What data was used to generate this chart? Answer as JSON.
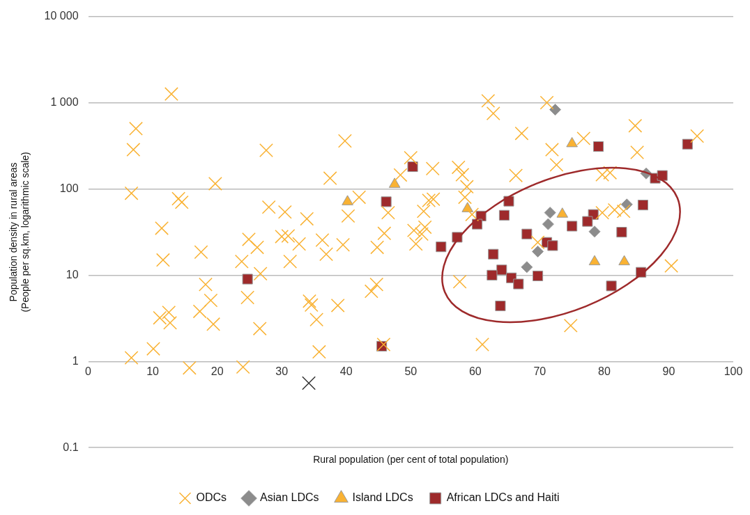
{
  "chart_data": {
    "type": "scatter",
    "xlabel": "Rural population (per cent of total population)",
    "ylabel": "Population density in rural areas\n(People per sq.km, logarithmic scale)",
    "log": "y",
    "grid": "y",
    "legend": "bottom",
    "xlim": [
      0,
      100
    ],
    "xticks": [
      0,
      10,
      20,
      30,
      40,
      50,
      60,
      70,
      80,
      90,
      100
    ],
    "ylim": [
      0.1,
      10000
    ],
    "yticks": [
      0.1,
      1,
      10,
      100,
      {
        "value": 1000,
        "label": "1 000"
      },
      {
        "value": 10000,
        "label": "10 000"
      }
    ],
    "series": [
      {
        "name": "ODCs",
        "color": "#f9b233",
        "marker": "cross",
        "x": [
          12.9,
          7.4,
          7.0,
          6.7,
          14,
          14.5,
          19.7,
          11.4,
          11.6,
          17.5,
          18.2,
          19,
          19.4,
          17.3,
          12.5,
          12.7,
          11.1,
          10.1,
          6.7,
          15.7,
          24,
          24.7,
          24.9,
          23.8,
          26.2,
          26.6,
          26.7,
          27.6,
          28,
          30.5,
          30,
          31,
          31.3,
          32.7,
          33.9,
          34.3,
          34.6,
          35.4,
          35.8,
          36.3,
          36.9,
          37.5,
          38.7,
          39.5,
          39.8,
          40.3,
          42,
          43.9,
          44.7,
          44.8,
          45.9,
          46.5,
          45.8,
          48.4,
          50,
          50.5,
          50.8,
          51.7,
          52.2,
          53.4,
          52.8,
          53.5,
          52,
          57.4,
          58,
          58.7,
          58.4,
          57.6,
          59.5,
          61.1,
          62,
          62.8,
          67.2,
          71.1,
          76.8,
          84.8,
          94.4,
          71.9,
          72.6,
          85.1,
          66.3,
          79.7,
          80.9,
          79.7,
          81.6,
          83,
          69.7,
          90.4,
          74.8
        ],
        "values": [
          1260,
          500,
          285,
          89,
          77,
          70,
          115,
          35,
          15,
          18.5,
          7.8,
          5.1,
          2.7,
          3.8,
          3.7,
          2.8,
          3.2,
          1.4,
          1.1,
          0.84,
          0.86,
          5.5,
          26,
          14.4,
          21,
          2.4,
          10.4,
          280,
          61.5,
          54,
          28,
          28.5,
          14.4,
          23,
          45,
          5.0,
          4.5,
          3.05,
          1.29,
          25.5,
          17.5,
          133,
          4.45,
          22.5,
          360,
          48.5,
          80,
          6.5,
          7.8,
          21,
          30.5,
          53,
          1.57,
          145,
          230,
          33,
          23,
          30,
          36,
          172,
          73.5,
          76,
          55,
          178,
          146,
          106,
          80,
          8.4,
          50.5,
          1.57,
          1050,
          750,
          440,
          1000,
          385,
          540,
          410,
          285,
          190,
          265,
          143,
          146,
          154,
          53,
          57,
          55,
          24,
          12.8,
          2.6
        ]
      },
      {
        "color": "#333333",
        "marker": "cross",
        "x": [
          34.2
        ],
        "values": [
          0.56
        ]
      },
      {
        "name": "Asian LDCs",
        "color": "#8c8c8c",
        "marker": "diamond",
        "x": [
          72.4,
          86.5,
          83.5,
          71.6,
          71.3,
          78.5,
          69.7,
          68
        ],
        "values": [
          830,
          151,
          66,
          53,
          39,
          32,
          18.8,
          12.4
        ]
      },
      {
        "name": "Island LDCs",
        "color": "#f9b233",
        "marker": "triangle",
        "x": [
          40.2,
          47.5,
          58.8,
          75,
          73.5,
          78.5,
          83.1
        ],
        "values": [
          71,
          113,
          59,
          335,
          51,
          14.3,
          14.3
        ]
      },
      {
        "name": "African LDCs and Haiti",
        "color": "#9e2a2b",
        "marker": "square",
        "x": [
          24.7,
          46.2,
          50.3,
          45.5,
          54.7,
          57.2,
          79.1,
          92.9,
          87.9,
          89,
          86,
          65.2,
          64.5,
          60.9,
          60.3,
          78.3,
          77.4,
          75,
          82.7,
          68,
          71.1,
          72,
          62.8,
          64.1,
          62.6,
          65.6,
          66.7,
          69.7,
          85.7,
          81.1,
          63.9
        ],
        "values": [
          9.0,
          71,
          181,
          1.5,
          21.3,
          27.5,
          310,
          330,
          133,
          143,
          65,
          72,
          49.5,
          48.5,
          39,
          50.5,
          42,
          37,
          31.5,
          30,
          24,
          22,
          17.5,
          11.5,
          10,
          9.3,
          7.9,
          9.8,
          10.8,
          7.5,
          4.4
        ]
      }
    ]
  }
}
